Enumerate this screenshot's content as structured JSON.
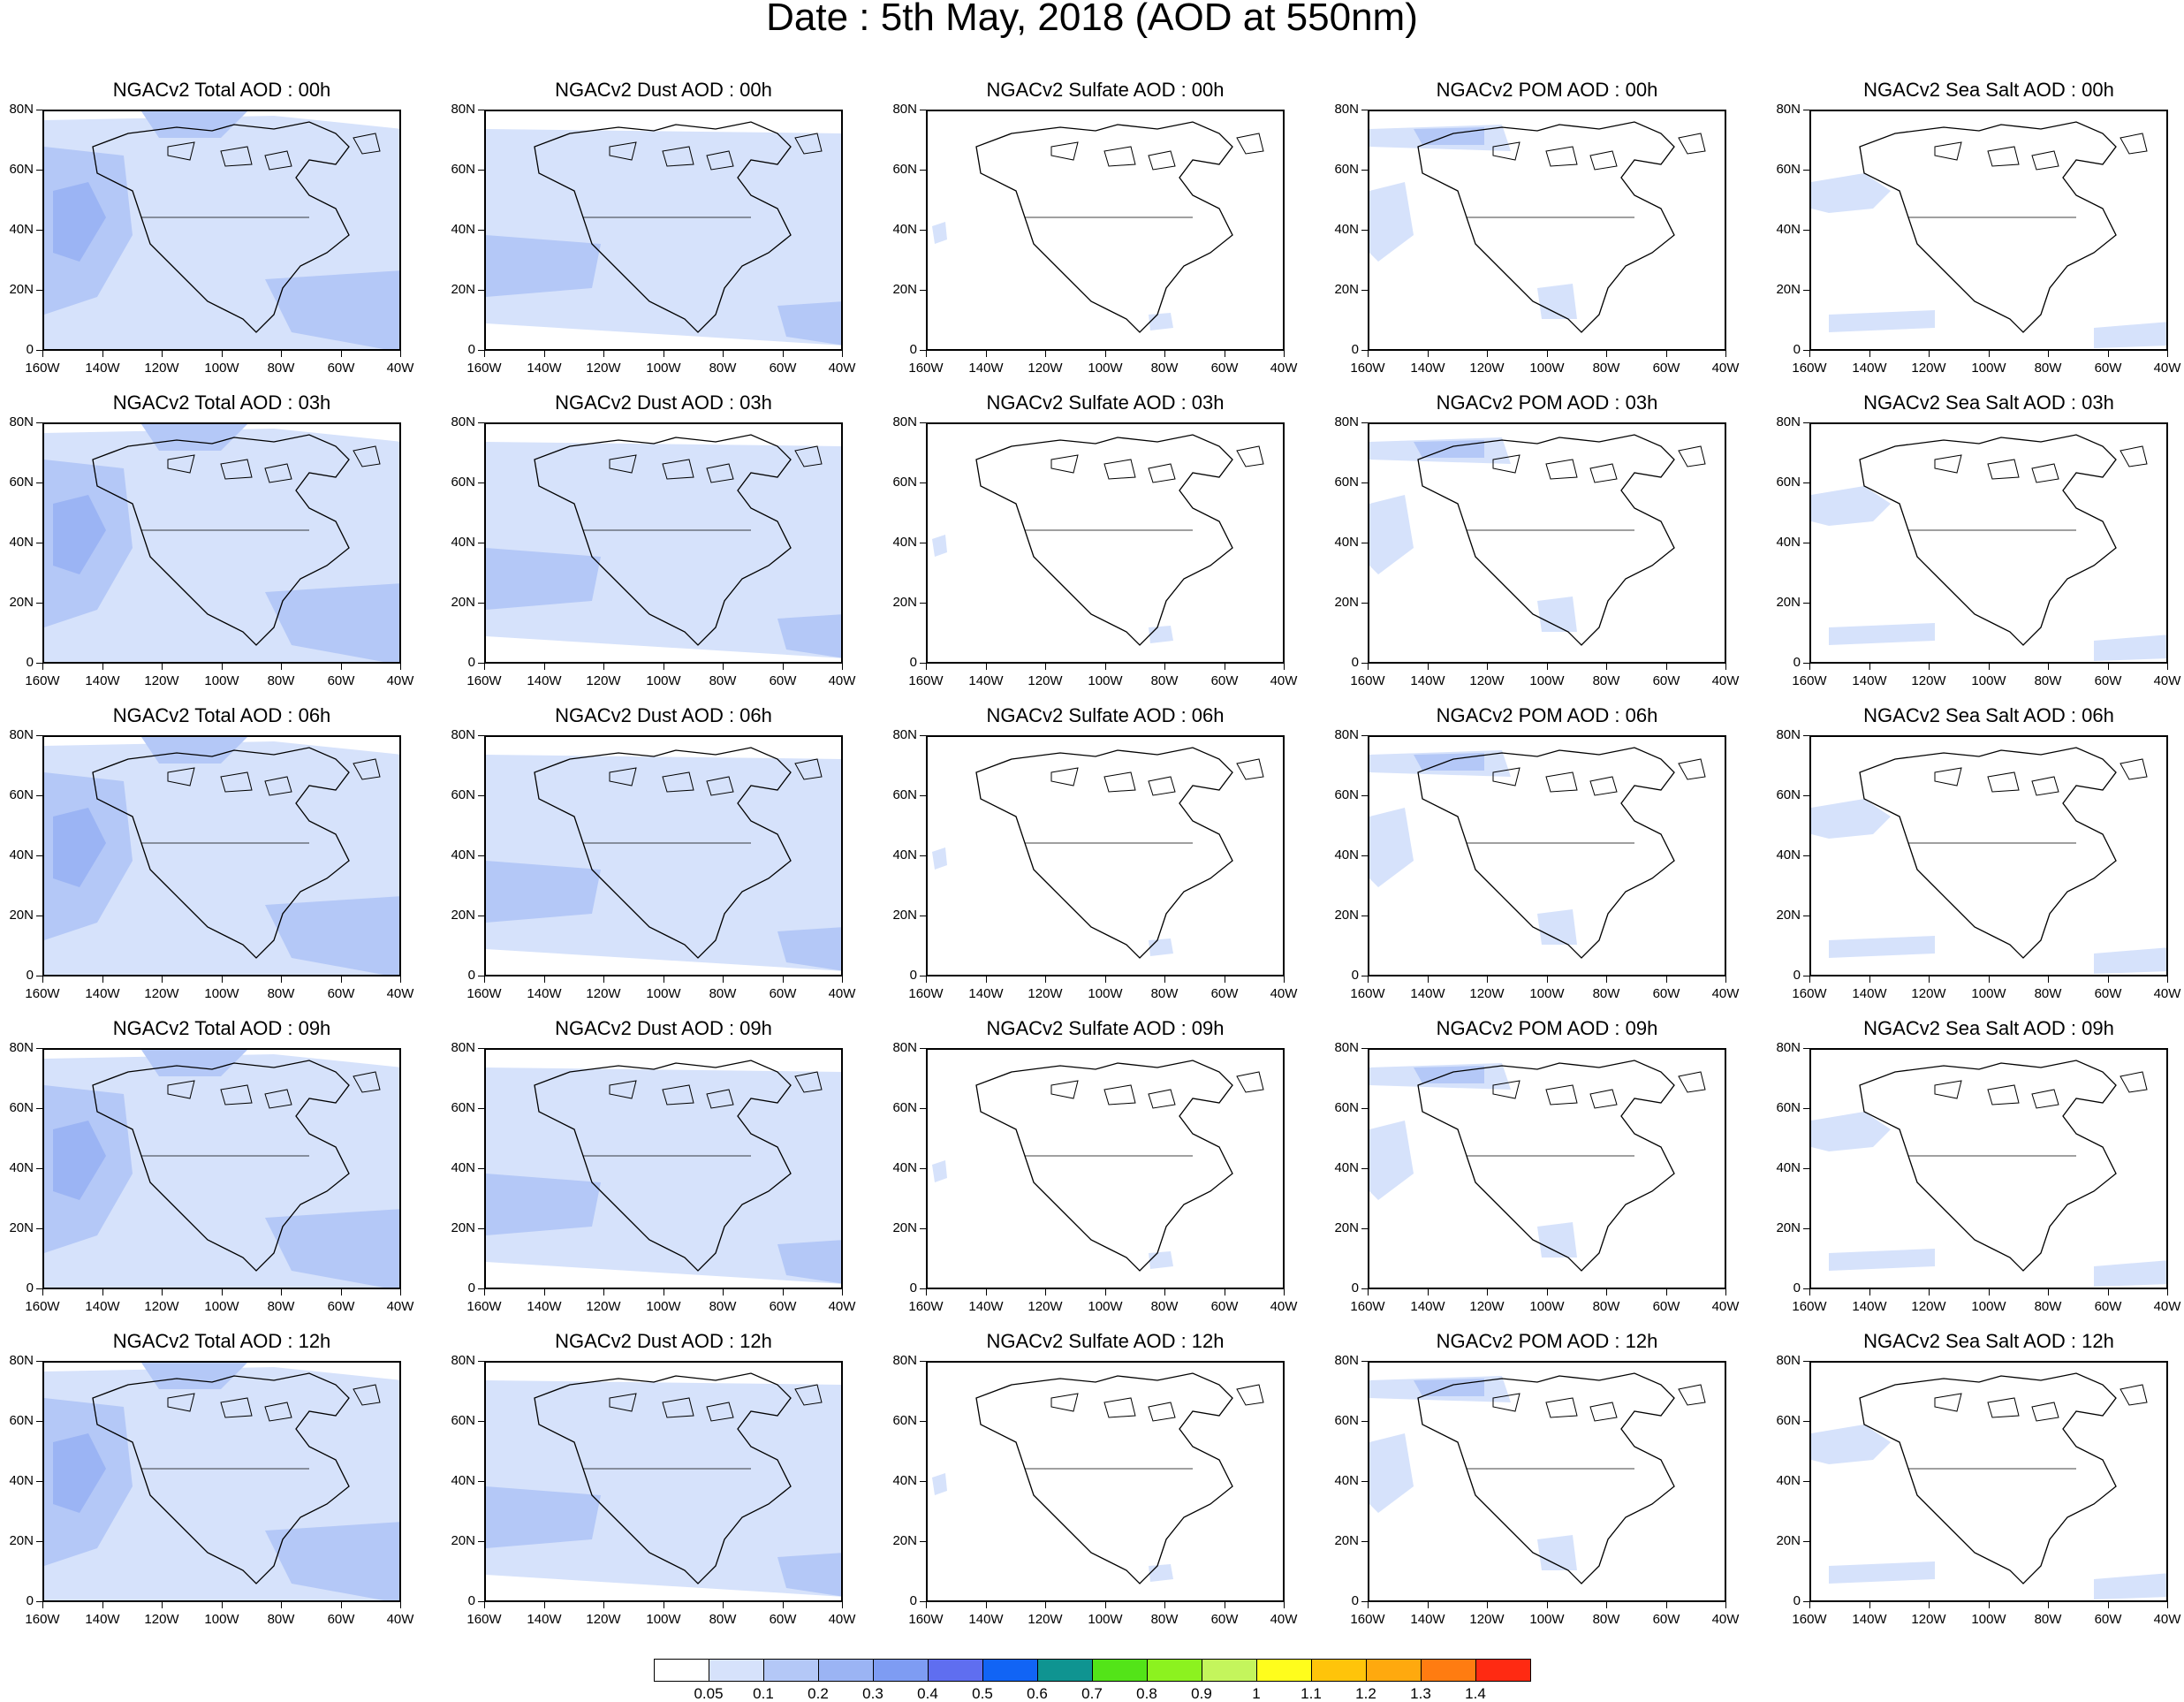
{
  "title": "Date : 5th May, 2018 (AOD at 550nm)",
  "axes": {
    "y_ticks": [
      "80N",
      "60N",
      "40N",
      "20N",
      "0"
    ],
    "x_ticks": [
      "160W",
      "140W",
      "120W",
      "100W",
      "80W",
      "60W",
      "40W"
    ]
  },
  "colors": {
    "band1": "#d6e2fb",
    "band2": "#b4c8f7",
    "band3": "#9bb4f4",
    "coast": "#000000"
  },
  "panels": [
    {
      "title": "NGACv2 Total AOD : 00h",
      "layer": "total"
    },
    {
      "title": "NGACv2 Dust AOD : 00h",
      "layer": "dust"
    },
    {
      "title": "NGACv2 Sulfate AOD : 00h",
      "layer": "sulfate"
    },
    {
      "title": "NGACv2 POM AOD : 00h",
      "layer": "pom"
    },
    {
      "title": "NGACv2 Sea Salt AOD : 00h",
      "layer": "seasalt"
    },
    {
      "title": "NGACv2 Total AOD : 03h",
      "layer": "total"
    },
    {
      "title": "NGACv2 Dust AOD : 03h",
      "layer": "dust"
    },
    {
      "title": "NGACv2 Sulfate AOD : 03h",
      "layer": "sulfate"
    },
    {
      "title": "NGACv2 POM AOD : 03h",
      "layer": "pom"
    },
    {
      "title": "NGACv2 Sea Salt AOD : 03h",
      "layer": "seasalt"
    },
    {
      "title": "NGACv2 Total AOD : 06h",
      "layer": "total"
    },
    {
      "title": "NGACv2 Dust AOD : 06h",
      "layer": "dust"
    },
    {
      "title": "NGACv2 Sulfate AOD : 06h",
      "layer": "sulfate"
    },
    {
      "title": "NGACv2 POM AOD : 06h",
      "layer": "pom"
    },
    {
      "title": "NGACv2 Sea Salt AOD : 06h",
      "layer": "seasalt"
    },
    {
      "title": "NGACv2 Total AOD : 09h",
      "layer": "total"
    },
    {
      "title": "NGACv2 Dust AOD : 09h",
      "layer": "dust"
    },
    {
      "title": "NGACv2 Sulfate AOD : 09h",
      "layer": "sulfate"
    },
    {
      "title": "NGACv2 POM AOD : 09h",
      "layer": "pom"
    },
    {
      "title": "NGACv2 Sea Salt  AOD : 09h",
      "layer": "seasalt"
    },
    {
      "title": "NGACv2 Total AOD  : 12h",
      "layer": "total"
    },
    {
      "title": "NGACv2 Dust AOD : 12h",
      "layer": "dust"
    },
    {
      "title": "NGACv2 Sulfate AOD : 12h",
      "layer": "sulfate"
    },
    {
      "title": "NGACv2 POM  AOD : 12h",
      "layer": "pom"
    },
    {
      "title": "NGACv2 Sea Salt  AOD : 12h",
      "layer": "seasalt"
    }
  ],
  "colorbar": {
    "colors": [
      "#ffffff",
      "#d6e2fb",
      "#b4c8f7",
      "#9bb4f4",
      "#7e9cf3",
      "#5f6ef0",
      "#1164f5",
      "#0f9491",
      "#53e418",
      "#8cf21f",
      "#c4f55c",
      "#fffd1c",
      "#ffc40a",
      "#ffa90e",
      "#ff7c11",
      "#ff2a12"
    ],
    "labels": [
      "0.05",
      "0.1",
      "0.2",
      "0.3",
      "0.4",
      "0.5",
      "0.6",
      "0.7",
      "0.8",
      "0.9",
      "1",
      "1.1",
      "1.2",
      "1.3",
      "1.4"
    ]
  }
}
